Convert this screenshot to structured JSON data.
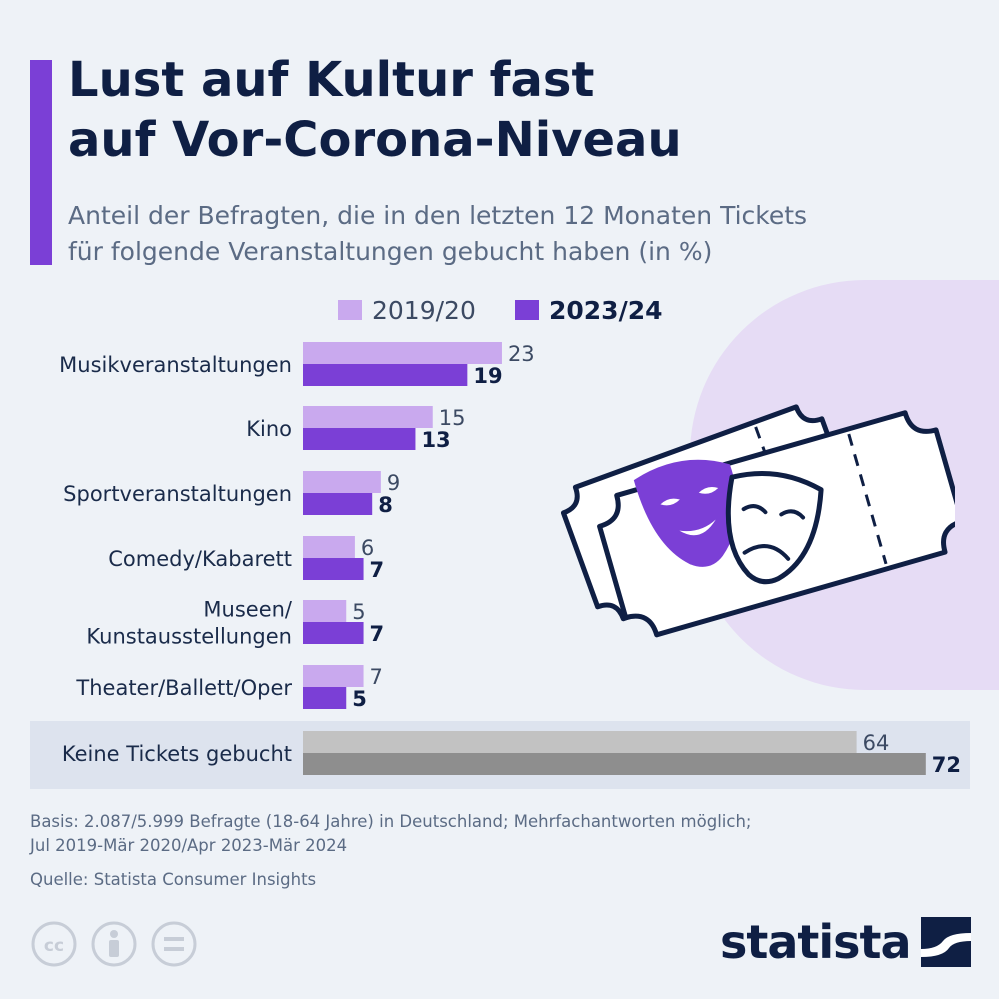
{
  "title": [
    "Lust auf Kultur fast",
    "auf Vor-Corona-Niveau"
  ],
  "subtitle": [
    "Anteil der Befragten, die in den letzten 12 Monaten Tickets",
    "für folgende Veranstaltungen gebucht haben (in %)"
  ],
  "colors": {
    "accent": "#7b3fd6",
    "series_2019": "#c9a9ee",
    "series_2023": "#7b3fd6",
    "none_2019": "#c2c2c2",
    "none_2023": "#8e8e8e",
    "navy": "#0f1f44"
  },
  "chart_data": {
    "type": "bar",
    "orientation": "horizontal",
    "categories": [
      [
        "Musikveranstaltungen"
      ],
      [
        "Kino"
      ],
      [
        "Sportveranstaltungen"
      ],
      [
        "Comedy/Kabarett"
      ],
      [
        "Museen/",
        "Kunstausstellungen"
      ],
      [
        "Theater/Ballett/Oper"
      ],
      [
        "Keine Tickets gebucht"
      ]
    ],
    "series": [
      {
        "name": "2019/20",
        "values": [
          23,
          15,
          9,
          6,
          5,
          7,
          64
        ]
      },
      {
        "name": "2023/24",
        "values": [
          19,
          13,
          8,
          7,
          7,
          5,
          72
        ]
      }
    ],
    "legend_position": "top",
    "highlighted_category_index": 6
  },
  "footer": {
    "basis": [
      "Basis: 2.087/5.999 Befragte (18-64 Jahre) in Deutschland; Mehrfachantworten möglich;",
      "Jul 2019-Mär 2020/Apr 2023-Mär 2024"
    ],
    "source": "Quelle: Statista Consumer Insights"
  },
  "brand": {
    "name": "statista"
  },
  "icons": [
    "cc-icon",
    "person-icon",
    "equals-icon",
    "theater-masks-icon",
    "ticket-icon",
    "statista-logo-icon"
  ]
}
